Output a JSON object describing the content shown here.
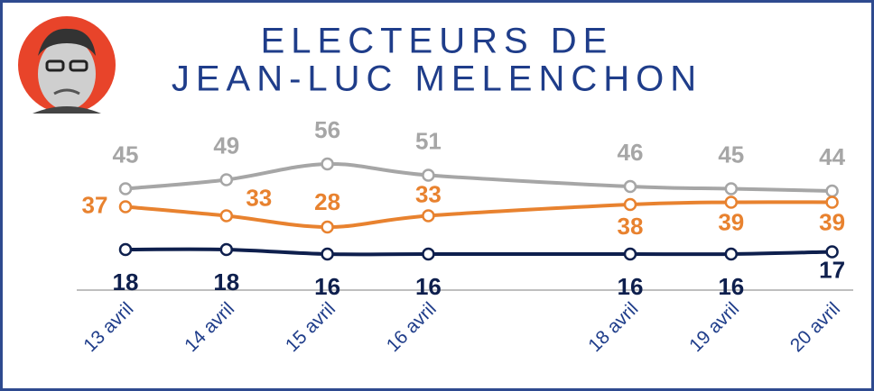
{
  "chart_data": {
    "type": "line",
    "title": [
      "ELECTEURS DE",
      "JEAN-LUC MELENCHON"
    ],
    "categories": [
      "13 avril",
      "14 avril",
      "15 avril",
      "16 avril",
      "18 avril",
      "19 avril",
      "20 avril"
    ],
    "series": [
      {
        "color": "#a6a6a6",
        "values": [
          45,
          49,
          56,
          51,
          46,
          45,
          44
        ]
      },
      {
        "color": "#e8822f",
        "values": [
          37,
          33,
          28,
          33,
          38,
          39,
          39
        ]
      },
      {
        "color": "#0e1f4d",
        "values": [
          18,
          18,
          16,
          16,
          16,
          16,
          17
        ]
      }
    ]
  }
}
